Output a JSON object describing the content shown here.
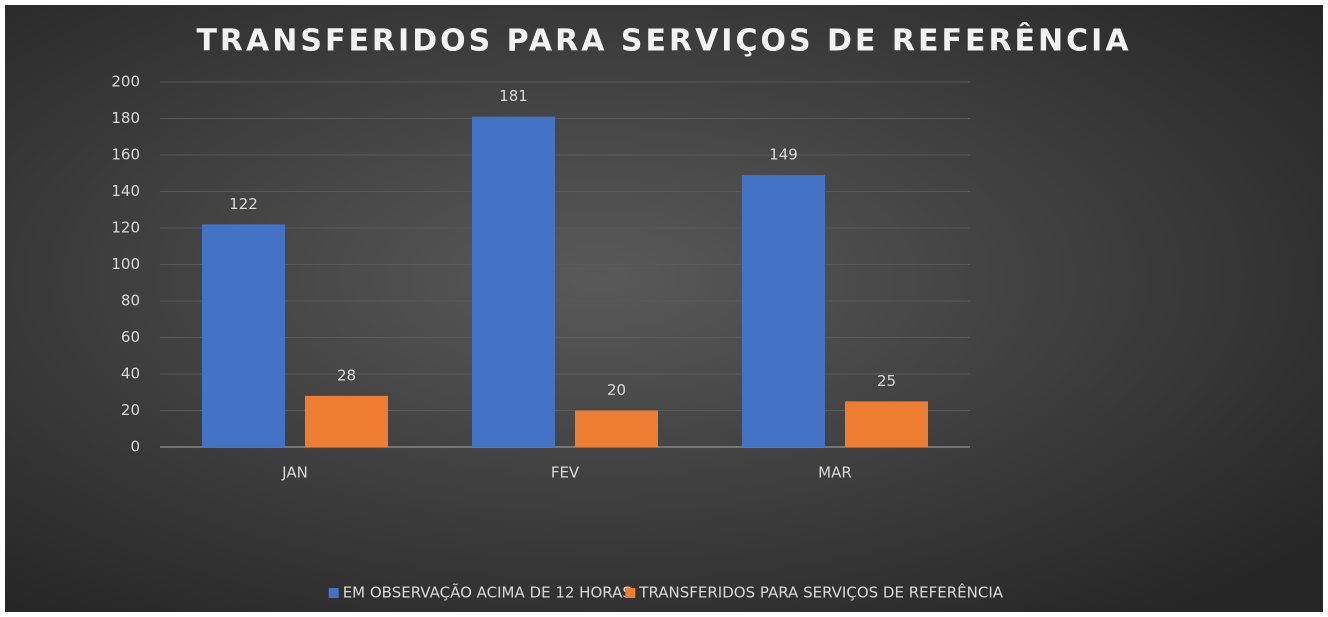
{
  "chart_data": {
    "type": "bar",
    "title": "TRANSFERIDOS PARA SERVIÇOS DE REFERÊNCIA",
    "categories": [
      "JAN",
      "FEV",
      "MAR"
    ],
    "series": [
      {
        "name": "EM OBSERVAÇÃO ACIMA DE 12 HORAS",
        "color": "#4472c4",
        "values": [
          122,
          181,
          149
        ]
      },
      {
        "name": "TRANSFERIDOS PARA SERVIÇOS DE REFERÊNCIA",
        "color": "#ed7d31",
        "values": [
          28,
          20,
          25
        ]
      }
    ],
    "ylim": [
      0,
      200
    ],
    "yticks": [
      0,
      20,
      40,
      60,
      80,
      100,
      120,
      140,
      160,
      180,
      200
    ],
    "grid": true,
    "legend": "bottom"
  }
}
